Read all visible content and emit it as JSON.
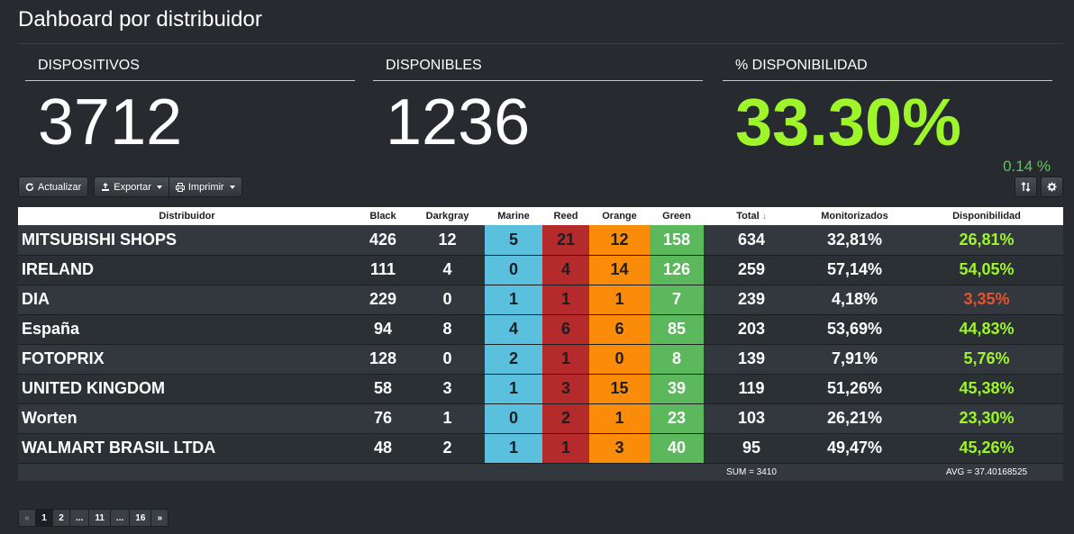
{
  "page": {
    "title": "Dahboard por distribuidor"
  },
  "kpis": {
    "devices": {
      "label": "DISPOSITIVOS",
      "value": "3712"
    },
    "available": {
      "label": "DISPONIBLES",
      "value": "1236"
    },
    "availability": {
      "label": "% DISPONIBILIDAD",
      "value": "33.30%",
      "delta": "0.14 %"
    }
  },
  "toolbar": {
    "refresh_label": "Actualizar",
    "export_label": "Exportar",
    "print_label": "Imprimir"
  },
  "table": {
    "headers": [
      "Distribuidor",
      "Black",
      "Darkgray",
      "Marine",
      "Reed",
      "Orange",
      "Green",
      "Total",
      "Monitorizados",
      "Disponibilidad"
    ],
    "rows": [
      [
        "MITSUBISHI SHOPS",
        "426",
        "12",
        "5",
        "21",
        "12",
        "158",
        "634",
        "32,81%",
        "26,81%"
      ],
      [
        "IRELAND",
        "111",
        "4",
        "0",
        "4",
        "14",
        "126",
        "259",
        "57,14%",
        "54,05%"
      ],
      [
        "DIA",
        "229",
        "0",
        "1",
        "1",
        "1",
        "7",
        "239",
        "4,18%",
        "3,35%"
      ],
      [
        "España",
        "94",
        "8",
        "4",
        "6",
        "6",
        "85",
        "203",
        "53,69%",
        "44,83%"
      ],
      [
        "FOTOPRIX",
        "128",
        "0",
        "2",
        "1",
        "0",
        "8",
        "139",
        "7,91%",
        "5,76%"
      ],
      [
        "UNITED KINGDOM",
        "58",
        "3",
        "1",
        "3",
        "15",
        "39",
        "119",
        "51,26%",
        "45,38%"
      ],
      [
        "Worten",
        "76",
        "1",
        "0",
        "2",
        "1",
        "23",
        "103",
        "26,21%",
        "23,30%"
      ],
      [
        "WALMART BRASIL LTDA",
        "48",
        "2",
        "1",
        "1",
        "3",
        "40",
        "95",
        "49,47%",
        "45,26%"
      ]
    ],
    "footer": {
      "sum": "SUM = 3410",
      "avg": "AVG = 37.40168525"
    }
  },
  "pagination": [
    "«",
    "1",
    "2",
    "...",
    "11",
    "...",
    "16",
    "»"
  ],
  "colors": {
    "background": "#272b30",
    "marine": "#5bc0de",
    "reed": "#b52a2a",
    "orange": "#fb8c0a",
    "green": "#5cb85c",
    "availability_good": "#9ef52a",
    "availability_bad": "#e8532c"
  }
}
